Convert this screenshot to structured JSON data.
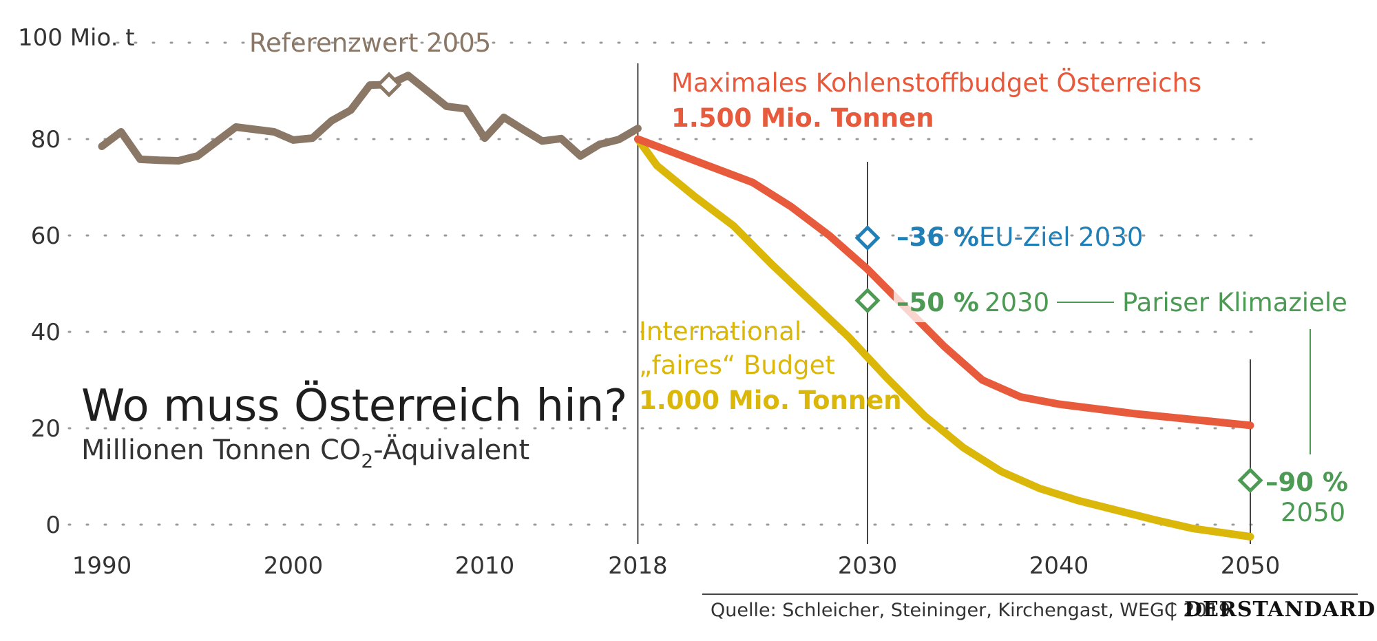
{
  "chart_data": {
    "type": "line",
    "title": "Wo muss Österreich hin?",
    "subtitle_main": "Millionen Tonnen CO",
    "subtitle_sub": "2",
    "subtitle_rest": "-Äquivalent",
    "y_unit_label": "100 Mio. t",
    "y_ticks": [
      "80",
      "60",
      "40",
      "20",
      "0"
    ],
    "x_ticks": [
      "1990",
      "2000",
      "2010",
      "2018",
      "2030",
      "2040",
      "2050"
    ],
    "xlim": [
      1988,
      2052
    ],
    "ylim": [
      -4,
      100
    ],
    "grid": "dotted horizontal",
    "colors": {
      "historical": "#8b7765",
      "max_budget": "#e85a3c",
      "fair_budget": "#dbb70a",
      "eu_target": "#1f7fb6",
      "paris": "#4c9a53",
      "axis": "#444444",
      "grid": "#9a9a9a"
    },
    "series": [
      {
        "key": "historical",
        "x": [
          1990,
          1991,
          1992,
          1993,
          1994,
          1995,
          1996,
          1997,
          1998,
          1999,
          2000,
          2001,
          2002,
          2003,
          2004,
          2005,
          2006,
          2007,
          2008,
          2009,
          2010,
          2011,
          2012,
          2013,
          2014,
          2015,
          2016,
          2017,
          2018
        ],
        "y": [
          78.5,
          81.5,
          75.8,
          75.6,
          75.5,
          76.5,
          79.5,
          82.5,
          82,
          81.5,
          79.8,
          80.2,
          83.8,
          86,
          91.2,
          91.3,
          93.2,
          90,
          86.8,
          86.3,
          80.2,
          84.5,
          82,
          79.6,
          80.1,
          76.5,
          78.9,
          79.9,
          82.2
        ]
      },
      {
        "key": "max_budget",
        "x": [
          2018,
          2021,
          2024,
          2026,
          2028,
          2030,
          2032,
          2034,
          2036,
          2038,
          2040,
          2044,
          2047,
          2050
        ],
        "y": [
          80,
          75.5,
          71,
          66,
          60,
          53,
          45,
          37,
          30,
          26.5,
          25,
          23,
          21.8,
          20.6
        ]
      },
      {
        "key": "fair_budget",
        "x": [
          2018,
          2019,
          2021,
          2023,
          2025,
          2027,
          2029,
          2031,
          2033,
          2035,
          2037,
          2039,
          2041,
          2043,
          2045,
          2047,
          2050
        ],
        "y": [
          80,
          74.5,
          68,
          62,
          54,
          46.5,
          39,
          30.5,
          22.5,
          16,
          11,
          7.5,
          5,
          3,
          1,
          -0.8,
          -2.5
        ]
      }
    ],
    "markers": [
      {
        "key": "ref_marker",
        "x": 2005,
        "y": 91.3,
        "color": "historical"
      },
      {
        "key": "eu_marker",
        "x": 2030,
        "y": 59.5,
        "color": "eu_target"
      },
      {
        "key": "paris2030_marker",
        "x": 2030,
        "y": 46.5,
        "color": "paris"
      },
      {
        "key": "paris2050_marker",
        "x": 2050,
        "y": 9.2,
        "color": "paris"
      }
    ],
    "annotations": {
      "reference": "Referenzwert 2005",
      "max_budget_line1": "Maximales Kohlenstoffbudget Österreichs",
      "max_budget_line2": "1.500 Mio. Tonnen",
      "eu_pct": "–36 %",
      "eu_text": "EU-Ziel  2030",
      "paris2030_pct": "–50 %",
      "paris2030_year": "2030",
      "paris_label": "Pariser Klimaziele",
      "fair_line1": "International",
      "fair_line2": "„faires“ Budget",
      "fair_line3": "1.000 Mio. Tonnen",
      "paris2050_pct": "–90 %",
      "paris2050_year": "2050"
    },
    "source": "Quelle: Schleicher, Steininger, Kirchengast, WEGC 2019",
    "source_sep": "|",
    "brand": "DERSTANDARD"
  }
}
